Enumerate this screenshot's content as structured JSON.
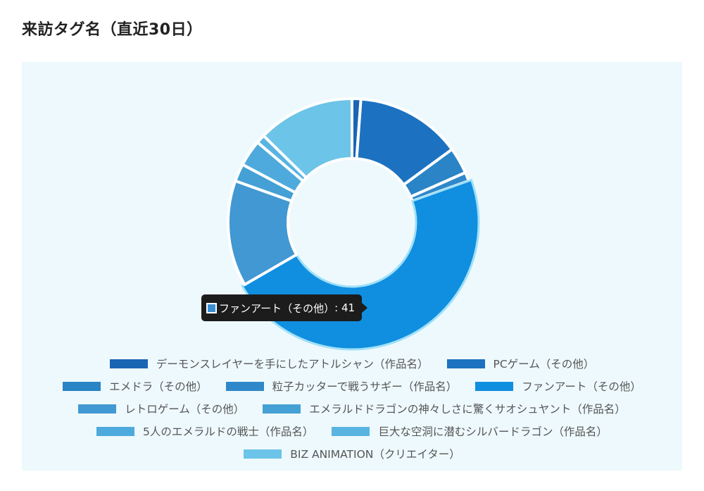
{
  "page": {
    "title": "来訪タグ名（直近30日）"
  },
  "tooltip": {
    "label": "ファンアート（その他）",
    "value": "41",
    "color": "#3a8fd2"
  },
  "chart_data": {
    "type": "doughnut",
    "title": "来訪タグ名（直近30日）",
    "legend_position": "bottom",
    "categories": [
      "デーモンスレイヤーを手にしたアトルシャン（作品名）",
      "PCゲーム（その他）",
      "エメドラ（その他）",
      "粒子カッターで戦うサギー（作品名）",
      "ファンアート（その他）",
      "レトロゲーム（その他）",
      "エメラルドドラゴンの神々しさに驚くサオシュヤント（作品名）",
      "5人のエメラルドの戦士（作品名）",
      "巨大な空洞に潜むシルバードラゴン（作品名）",
      "BIZ ANIMATION（クリエイター）"
    ],
    "values": [
      1,
      12,
      3,
      1,
      41,
      12,
      2,
      3,
      1,
      11
    ],
    "colors": [
      "#1a64b4",
      "#1c72c0",
      "#2a84c6",
      "#2f88ca",
      "#108ee0",
      "#4198d2",
      "#44a0d5",
      "#4eaadc",
      "#59b4e2",
      "#6cc4e8"
    ],
    "highlighted_index": 4
  },
  "legend_rows": [
    [
      0,
      1
    ],
    [
      2,
      3,
      4
    ],
    [
      5,
      6
    ],
    [
      7,
      8
    ],
    [
      9
    ]
  ]
}
